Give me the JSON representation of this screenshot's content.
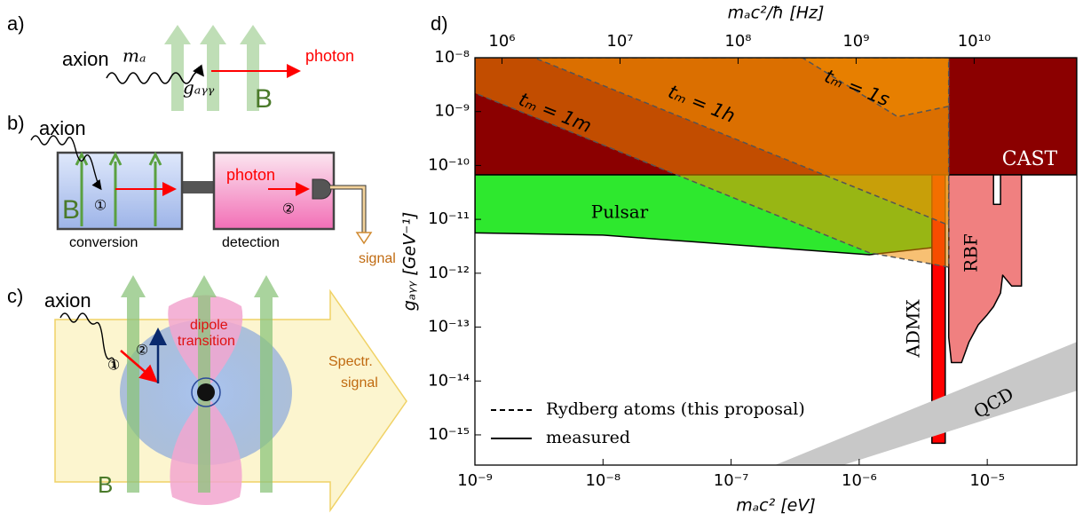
{
  "panels": {
    "a": {
      "label": "a)",
      "axion": "axion",
      "mass": "mₐ",
      "coupling": "gₐᵧᵧ",
      "photon": "photon",
      "field": "B"
    },
    "b": {
      "label": "b)",
      "axion": "axion",
      "field": "B",
      "step1": "①",
      "photon": "photon",
      "step2": "②",
      "conversion": "conversion",
      "detection": "detection",
      "signal": "signal"
    },
    "c": {
      "label": "c)",
      "axion": "axion",
      "dipole": "dipole",
      "transition": "transition",
      "step1": "①",
      "step2": "②",
      "spectr": "Spectr.",
      "signal": "signal",
      "field": "B"
    },
    "d": {
      "label": "d)"
    }
  },
  "chart_data": {
    "type": "region",
    "xlabel": "mₐc² [eV]",
    "x2label": "mₐc²/ħ [Hz]",
    "ylabel": "gₐᵧᵧ [GeV⁻¹]",
    "log_x": true,
    "log_y": true,
    "xlim": [
      1e-09,
      5e-05
    ],
    "ylim": [
      2.75e-16,
      1e-08
    ],
    "x2lim": [
      590000.0,
      74000000000.0
    ],
    "xticks": [
      {
        "value": 1e-09,
        "label": "10⁻⁹"
      },
      {
        "value": 1e-08,
        "label": "10⁻⁸"
      },
      {
        "value": 1e-07,
        "label": "10⁻⁷"
      },
      {
        "value": 1e-06,
        "label": "10⁻⁶"
      },
      {
        "value": 1e-05,
        "label": "10⁻⁵"
      }
    ],
    "x2ticks": [
      {
        "value": 1000000.0,
        "label": "10⁶"
      },
      {
        "value": 10000000.0,
        "label": "10⁷"
      },
      {
        "value": 100000000.0,
        "label": "10⁸"
      },
      {
        "value": 1000000000.0,
        "label": "10⁹"
      },
      {
        "value": 10000000000.0,
        "label": "10¹⁰"
      }
    ],
    "yticks": [
      {
        "value": 1e-08,
        "label": "10⁻⁸"
      },
      {
        "value": 1e-09,
        "label": "10⁻⁹"
      },
      {
        "value": 1e-10,
        "label": "10⁻¹⁰"
      },
      {
        "value": 1e-11,
        "label": "10⁻¹¹"
      },
      {
        "value": 1e-12,
        "label": "10⁻¹²"
      },
      {
        "value": 1e-13,
        "label": "10⁻¹³"
      },
      {
        "value": 1e-14,
        "label": "10⁻¹⁴"
      },
      {
        "value": 1e-15,
        "label": "10⁻¹⁵"
      }
    ],
    "legend": "lower left",
    "legend_entries": [
      {
        "label": "Rydberg atoms (this proposal)",
        "line_style": "dashed"
      },
      {
        "label": "measured",
        "line_style": "solid"
      }
    ],
    "series": [
      {
        "name": "CAST",
        "color": "#8b0000",
        "line_style": "solid",
        "x": [
          1e-09,
          5e-05,
          5e-05,
          1e-09
        ],
        "y": [
          1e-08,
          1e-08,
          6.7e-11,
          6.7e-11
        ]
      },
      {
        "name": "Pulsar",
        "color": "#2ee82e",
        "line_style": "solid",
        "x": [
          1e-09,
          3.8e-06,
          3.8e-06,
          1.2e-06,
          1e-08,
          1e-09
        ],
        "y": [
          6.7e-11,
          6.7e-11,
          3e-12,
          2.2e-12,
          5.1e-12,
          5.6e-12
        ]
      },
      {
        "name": "ADMX",
        "color": "#ff0000",
        "line_style": "solid",
        "x": [
          3.7e-06,
          4.7e-06,
          4.7e-06,
          3.7e-06
        ],
        "y": [
          6.7e-11,
          6.7e-11,
          7e-16,
          7e-16
        ]
      },
      {
        "name": "RBF",
        "color": "#f08080",
        "line_style": "solid",
        "x": [
          5e-06,
          1.12e-05,
          1.12e-05,
          1.27e-05,
          1.27e-05,
          1.85e-05,
          1.85e-05,
          1.55e-05,
          1.32e-05,
          1.27e-05,
          1.12e-05,
          1e-05,
          8.5e-06,
          7.2e-06,
          6.3e-06,
          5.25e-06,
          5e-06
        ],
        "y": [
          6.7e-11,
          6.7e-11,
          1.9e-11,
          1.9e-11,
          6.7e-11,
          6.7e-11,
          5.8e-13,
          5.8e-13,
          9.2e-13,
          4.3e-13,
          2.4e-13,
          1.7e-13,
          1.1e-13,
          5.3e-14,
          2.2e-14,
          2.2e-14,
          6.5e-14
        ]
      },
      {
        "name": "QCD",
        "color": "#c8c8c8",
        "line_style": "none",
        "x": [
          2.2e-07,
          5e-05,
          5e-05,
          7.5e-07
        ],
        "y": [
          2.75e-16,
          5.3e-14,
          6.6e-15,
          2.75e-16
        ]
      },
      {
        "name": "tₘ = 1m",
        "color": "#f08c00",
        "line_style": "dashed",
        "x": [
          1e-09,
          5e-06,
          5e-06,
          1.2e-06,
          1e-09
        ],
        "y": [
          1e-08,
          1e-08,
          1.3e-12,
          2.4e-12,
          2.2e-09
        ]
      },
      {
        "name": "tₘ = 1h",
        "color": "#f08c00",
        "line_style": "dashed",
        "x": [
          2.9e-09,
          5e-06,
          5e-06
        ],
        "y": [
          1e-08,
          1e-08,
          7.8e-12
        ]
      },
      {
        "name": "tₘ = 1s",
        "color": "#f08c00",
        "line_style": "dashed",
        "x": [
          3.6e-07,
          5e-06,
          5e-06,
          2e-06
        ],
        "y": [
          1e-08,
          1e-08,
          1.25e-09,
          8e-10
        ]
      }
    ]
  }
}
